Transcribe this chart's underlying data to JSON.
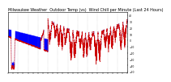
{
  "title": "Milwaukee Weather  Outdoor Temp (vs)  Wind Chill per Minute (Last 24 Hours)",
  "title_fontsize": 3.5,
  "bg_color": "#ffffff",
  "plot_bg_color": "#ffffff",
  "blue_color": "#0000ff",
  "red_color": "#cc0000",
  "grid_color": "#999999",
  "ylim": [
    -51,
    45
  ],
  "yticks": [
    40,
    30,
    20,
    10,
    0,
    -10,
    -20,
    -30,
    -40,
    -50
  ],
  "n_points": 1440,
  "seed": 17
}
